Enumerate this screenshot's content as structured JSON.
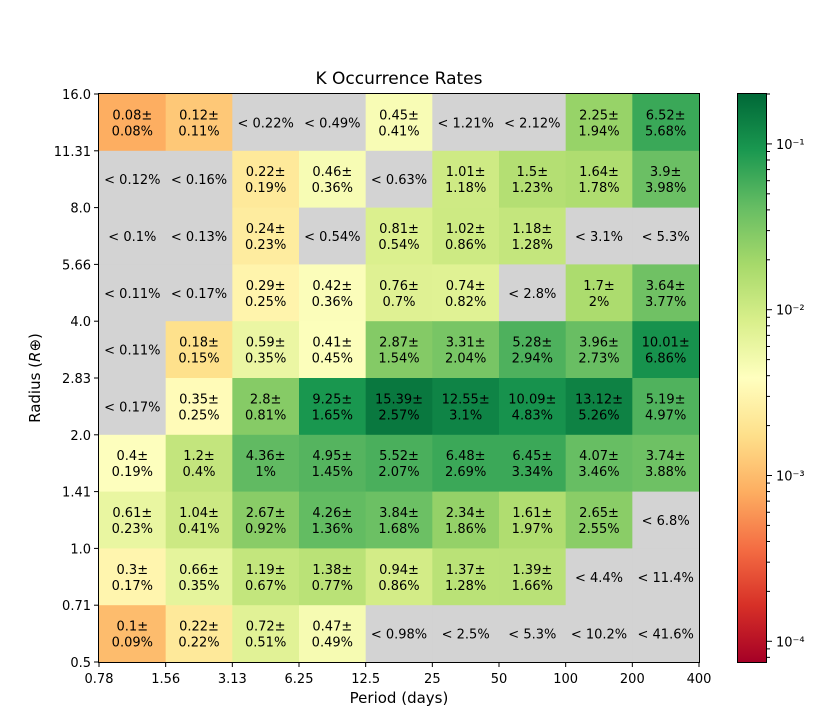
{
  "chart_data": {
    "type": "heatmap",
    "title": "K Occurrence Rates",
    "xlabel": "Period (days)",
    "ylabel": "Radius (R⊕)",
    "x_tick_labels": [
      "0.78",
      "1.56",
      "3.13",
      "6.25",
      "12.5",
      "25",
      "50",
      "100",
      "200",
      "400"
    ],
    "y_tick_labels": [
      "0.5",
      "0.71",
      "1.0",
      "1.41",
      "2.0",
      "2.83",
      "4.0",
      "5.66",
      "8.0",
      "11.31",
      "16.0"
    ],
    "x_scale": "log2",
    "y_scale": "log2",
    "colormap": "RdYlGn",
    "color_scale": "log",
    "color_range": [
      7.5e-05,
      0.2
    ],
    "colorbar_tick_labels": [
      "10⁻⁴",
      "10⁻³",
      "10⁻²",
      "10⁻¹"
    ],
    "colorbar_ticks": [
      0.0001,
      0.001,
      0.01,
      0.1
    ],
    "upper_limit_color": "#d3d3d3",
    "rows_top_to_bottom": [
      {
        "radius_bin": "11.31-16.0",
        "cells": [
          {
            "rate": 0.08,
            "err": 0.08
          },
          {
            "rate": 0.12,
            "err": 0.11
          },
          {
            "upper": 0.22
          },
          {
            "upper": 0.49
          },
          {
            "rate": 0.45,
            "err": 0.41
          },
          {
            "upper": 1.21
          },
          {
            "upper": 2.12
          },
          {
            "rate": 2.25,
            "err": 1.94
          },
          {
            "rate": 6.52,
            "err": 5.68
          }
        ]
      },
      {
        "radius_bin": "8.0-11.31",
        "cells": [
          {
            "upper": 0.12
          },
          {
            "upper": 0.16
          },
          {
            "rate": 0.22,
            "err": 0.19
          },
          {
            "rate": 0.46,
            "err": 0.36
          },
          {
            "upper": 0.63
          },
          {
            "rate": 1.01,
            "err": 1.18
          },
          {
            "rate": 1.5,
            "err": 1.23
          },
          {
            "rate": 1.64,
            "err": 1.78
          },
          {
            "rate": 3.9,
            "err": 3.98
          }
        ]
      },
      {
        "radius_bin": "5.66-8.0",
        "cells": [
          {
            "upper": 0.1
          },
          {
            "upper": 0.13
          },
          {
            "rate": 0.24,
            "err": 0.23
          },
          {
            "upper": 0.54
          },
          {
            "rate": 0.81,
            "err": 0.54
          },
          {
            "rate": 1.02,
            "err": 0.86
          },
          {
            "rate": 1.18,
            "err": 1.28
          },
          {
            "upper": 3.1
          },
          {
            "upper": 5.3
          }
        ]
      },
      {
        "radius_bin": "4.0-5.66",
        "cells": [
          {
            "upper": 0.11
          },
          {
            "upper": 0.17
          },
          {
            "rate": 0.29,
            "err": 0.25
          },
          {
            "rate": 0.42,
            "err": 0.36
          },
          {
            "rate": 0.76,
            "err": 0.7
          },
          {
            "rate": 0.74,
            "err": 0.82
          },
          {
            "upper": 2.8
          },
          {
            "rate": 1.7,
            "err": 2.0
          },
          {
            "rate": 3.64,
            "err": 3.77
          }
        ]
      },
      {
        "radius_bin": "2.83-4.0",
        "cells": [
          {
            "upper": 0.11
          },
          {
            "rate": 0.18,
            "err": 0.15
          },
          {
            "rate": 0.59,
            "err": 0.35
          },
          {
            "rate": 0.41,
            "err": 0.45
          },
          {
            "rate": 2.87,
            "err": 1.54
          },
          {
            "rate": 3.31,
            "err": 2.04
          },
          {
            "rate": 5.28,
            "err": 2.94
          },
          {
            "rate": 3.96,
            "err": 2.73
          },
          {
            "rate": 10.01,
            "err": 6.86
          }
        ]
      },
      {
        "radius_bin": "2.0-2.83",
        "cells": [
          {
            "upper": 0.17
          },
          {
            "rate": 0.35,
            "err": 0.25
          },
          {
            "rate": 2.8,
            "err": 0.81
          },
          {
            "rate": 9.25,
            "err": 1.65
          },
          {
            "rate": 15.39,
            "err": 2.57
          },
          {
            "rate": 12.55,
            "err": 3.1
          },
          {
            "rate": 10.09,
            "err": 4.83
          },
          {
            "rate": 13.12,
            "err": 5.26
          },
          {
            "rate": 5.19,
            "err": 4.97
          }
        ]
      },
      {
        "radius_bin": "1.41-2.0",
        "cells": [
          {
            "rate": 0.4,
            "err": 0.19
          },
          {
            "rate": 1.2,
            "err": 0.4
          },
          {
            "rate": 4.36,
            "err": 1.0
          },
          {
            "rate": 4.95,
            "err": 1.45
          },
          {
            "rate": 5.52,
            "err": 2.07
          },
          {
            "rate": 6.48,
            "err": 2.69
          },
          {
            "rate": 6.45,
            "err": 3.34
          },
          {
            "rate": 4.07,
            "err": 3.46
          },
          {
            "rate": 3.74,
            "err": 3.88
          }
        ]
      },
      {
        "radius_bin": "1.0-1.41",
        "cells": [
          {
            "rate": 0.61,
            "err": 0.23
          },
          {
            "rate": 1.04,
            "err": 0.41
          },
          {
            "rate": 2.67,
            "err": 0.92
          },
          {
            "rate": 4.26,
            "err": 1.36
          },
          {
            "rate": 3.84,
            "err": 1.68
          },
          {
            "rate": 2.34,
            "err": 1.86
          },
          {
            "rate": 1.61,
            "err": 1.97
          },
          {
            "rate": 2.65,
            "err": 2.55
          },
          {
            "upper": 6.8
          }
        ]
      },
      {
        "radius_bin": "0.71-1.0",
        "cells": [
          {
            "rate": 0.3,
            "err": 0.17
          },
          {
            "rate": 0.66,
            "err": 0.35
          },
          {
            "rate": 1.19,
            "err": 0.67
          },
          {
            "rate": 1.38,
            "err": 0.77
          },
          {
            "rate": 0.94,
            "err": 0.86
          },
          {
            "rate": 1.37,
            "err": 1.28
          },
          {
            "rate": 1.39,
            "err": 1.66
          },
          {
            "upper": 4.4
          },
          {
            "upper": 11.4
          }
        ]
      },
      {
        "radius_bin": "0.5-0.71",
        "cells": [
          {
            "rate": 0.1,
            "err": 0.09
          },
          {
            "rate": 0.22,
            "err": 0.22
          },
          {
            "rate": 0.72,
            "err": 0.51
          },
          {
            "rate": 0.47,
            "err": 0.49
          },
          {
            "upper": 0.98
          },
          {
            "upper": 2.5
          },
          {
            "upper": 5.3
          },
          {
            "upper": 10.2
          },
          {
            "upper": 41.6
          }
        ]
      }
    ]
  }
}
